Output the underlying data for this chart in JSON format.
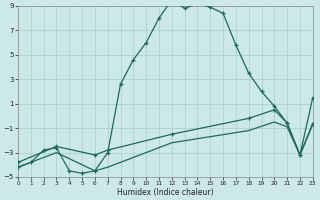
{
  "xlabel": "Humidex (Indice chaleur)",
  "bg_color": "#cce8e8",
  "grid_color": "#aacccc",
  "line_color": "#1a6b5a",
  "line1_x": [
    0,
    1,
    2,
    3,
    4,
    5,
    6,
    7,
    8,
    9,
    10,
    11,
    12,
    13,
    14,
    15,
    16,
    17,
    18,
    19,
    20,
    21,
    22,
    23
  ],
  "line1_y": [
    -4.2,
    -3.8,
    -2.8,
    -2.6,
    -4.5,
    -4.7,
    -4.5,
    -3.0,
    2.6,
    4.6,
    6.0,
    8.0,
    9.5,
    8.8,
    9.2,
    8.9,
    8.4,
    5.8,
    3.5,
    2.0,
    0.8,
    -0.6,
    -3.2,
    -0.7
  ],
  "line2_x": [
    0,
    3,
    6,
    7,
    12,
    18,
    20,
    21,
    22,
    23
  ],
  "line2_y": [
    -3.8,
    -2.5,
    -3.2,
    -2.8,
    -1.5,
    -0.2,
    0.5,
    -0.6,
    -3.2,
    1.5
  ],
  "line3_x": [
    0,
    3,
    6,
    7,
    12,
    18,
    20,
    21,
    22,
    23
  ],
  "line3_y": [
    -4.2,
    -3.0,
    -4.5,
    -4.2,
    -2.2,
    -1.2,
    -0.5,
    -0.9,
    -3.2,
    -0.6
  ],
  "xlim": [
    0,
    23
  ],
  "ylim": [
    -5,
    9
  ],
  "yticks": [
    -5,
    -3,
    -1,
    1,
    3,
    5,
    7,
    9
  ],
  "xticks": [
    0,
    1,
    2,
    3,
    4,
    5,
    6,
    7,
    8,
    9,
    10,
    11,
    12,
    13,
    14,
    15,
    16,
    17,
    18,
    19,
    20,
    21,
    22,
    23
  ]
}
